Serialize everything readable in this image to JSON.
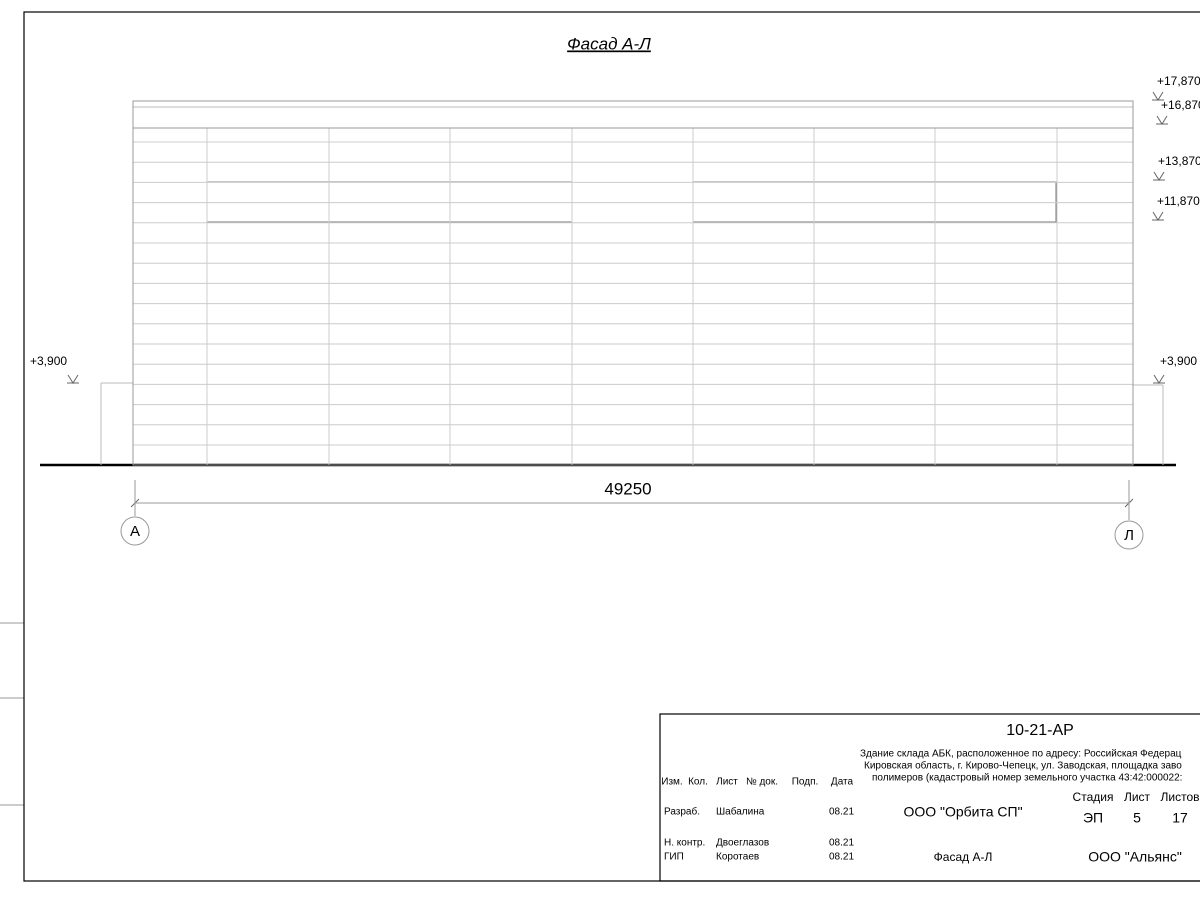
{
  "drawing": {
    "title": "Фасад А-Л",
    "levels": {
      "top": "+17,870",
      "parapet": "+16,870",
      "window_top": "+13,870",
      "window_bottom": "+11,870",
      "left": "+3,900",
      "right": "+3,900"
    },
    "dimension": "49250",
    "axes": {
      "left": "А",
      "right": "Л"
    }
  },
  "stamp": {
    "code": "10-21-АР",
    "address": [
      "Здание склада АБК, расположенное по адресу: Российская Федерац",
      "Кировская область, г. Кирово-Чепецк, ул. Заводская, площадка заво",
      "полимеров (кадастровый номер земельного участка 43:42:000022:"
    ],
    "headers": [
      "Изм.",
      "Кол.",
      "Лист",
      "№ док.",
      "Подп.",
      "Дата"
    ],
    "rows": [
      [
        "Разраб.",
        "Шабалина",
        "08.21"
      ],
      [
        "Н. контр.",
        "Двоеглазов",
        "08.21"
      ],
      [
        "ГИП",
        "Коротаев",
        "08.21"
      ]
    ],
    "designer": "ООО \"Орбита СП\"",
    "stage_headers": [
      "Стадия",
      "Лист",
      "Листов"
    ],
    "stage_values": [
      "ЭП",
      "5",
      "17"
    ],
    "sheet_title": "Фасад А-Л",
    "company": "ООО \"Альянс\""
  }
}
